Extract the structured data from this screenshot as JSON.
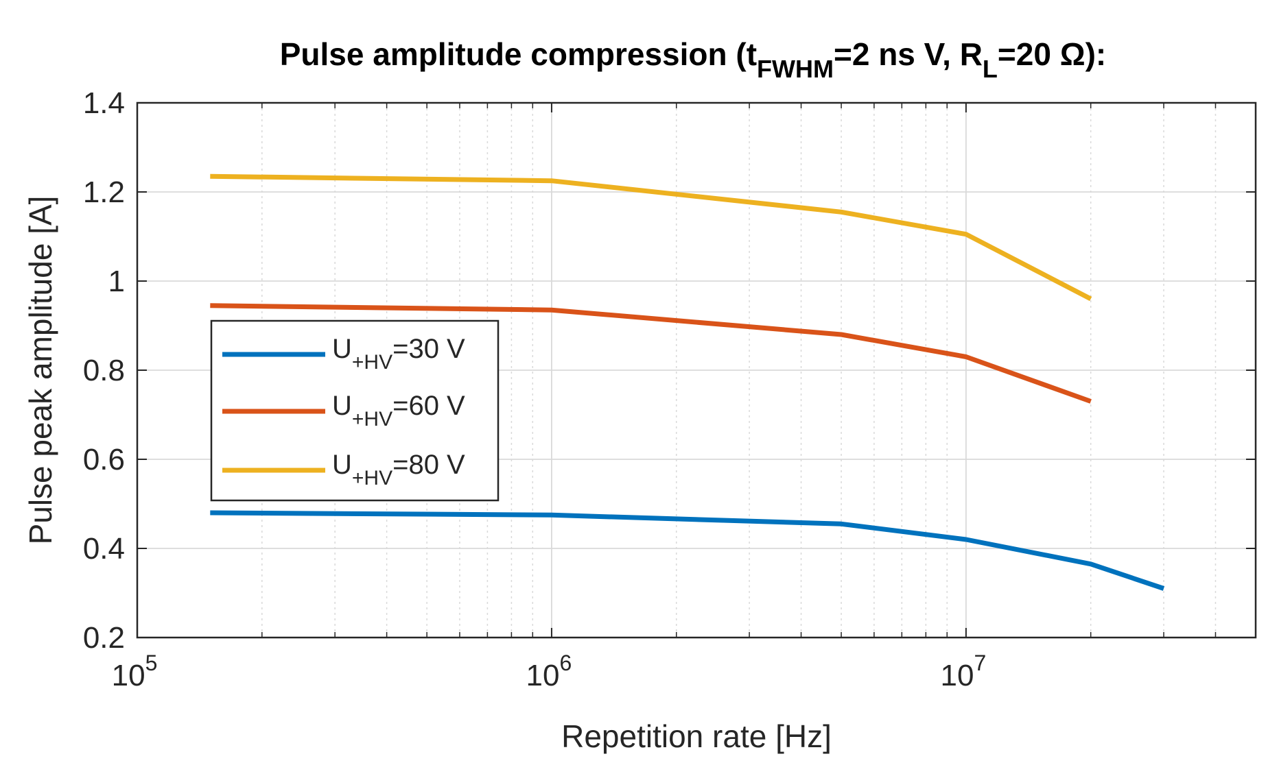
{
  "chart_data": {
    "type": "line",
    "title": {
      "prefix": "Pulse amplitude compression (t",
      "sub1": "FWHM",
      "middle": "=2 ns V, R",
      "sub2": "L",
      "suffix": "=20 Ω):"
    },
    "xlabel": "Repetition rate [Hz]",
    "ylabel": "Pulse peak amplitude [A]",
    "xscale": "log",
    "xlim": [
      100000,
      50000000
    ],
    "ylim": [
      0.2,
      1.4
    ],
    "grid": true,
    "minor_grid": true,
    "yticks": [
      0.2,
      0.4,
      0.6,
      0.8,
      1,
      1.2,
      1.4
    ],
    "ytick_labels": [
      "0.2",
      "0.4",
      "0.6",
      "0.8",
      "1",
      "1.2",
      "1.4"
    ],
    "xticks": [
      {
        "value": 100000,
        "base": "10",
        "exp": "5"
      },
      {
        "value": 1000000,
        "base": "10",
        "exp": "6"
      },
      {
        "value": 10000000,
        "base": "10",
        "exp": "7"
      }
    ],
    "legend_location": "center-left",
    "series": [
      {
        "name_main": "U",
        "name_sub": "+HV",
        "name_rest": "=30 V",
        "color": "#0072BD",
        "x": [
          150000,
          1000000,
          5000000,
          10000000,
          20000000,
          30000000
        ],
        "y": [
          0.48,
          0.475,
          0.455,
          0.42,
          0.365,
          0.31
        ]
      },
      {
        "name_main": "U",
        "name_sub": "+HV",
        "name_rest": "=60 V",
        "color": "#D95319",
        "x": [
          150000,
          1000000,
          5000000,
          10000000,
          20000000
        ],
        "y": [
          0.945,
          0.935,
          0.88,
          0.83,
          0.73
        ]
      },
      {
        "name_main": "U",
        "name_sub": "+HV",
        "name_rest": "=80 V",
        "color": "#EDB120",
        "x": [
          150000,
          1000000,
          5000000,
          10000000,
          20000000
        ],
        "y": [
          1.235,
          1.225,
          1.155,
          1.105,
          0.96
        ]
      }
    ]
  }
}
